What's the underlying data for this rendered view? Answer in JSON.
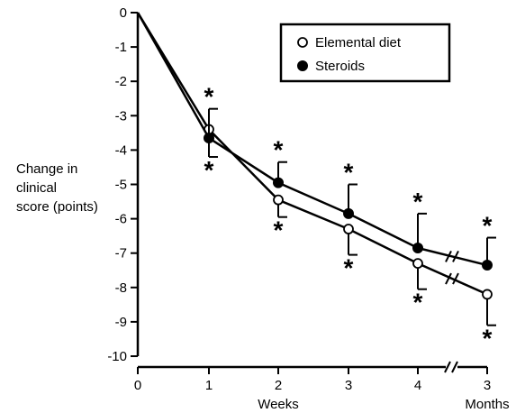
{
  "chart_data": {
    "type": "line",
    "ylabel": [
      "Change in",
      "clinical",
      "score (points)"
    ],
    "x_tick_labels": [
      "0",
      "1",
      "2",
      "3",
      "4",
      "3"
    ],
    "x_unit_labels": [
      "Weeks",
      "Months"
    ],
    "y_ticks": [
      0,
      -1,
      -2,
      -3,
      -4,
      -5,
      -6,
      -7,
      -8,
      -9,
      -10
    ],
    "y_tick_labels": [
      "0",
      "-1",
      "-2",
      "-3",
      "-4",
      "-5",
      "-6",
      "-7",
      "-8",
      "-9",
      "-10"
    ],
    "ylim": [
      -10,
      0
    ],
    "legend_position": "top-right",
    "axis_break": "between 4 weeks and 3 months",
    "significance_marker": "*",
    "series": [
      {
        "name": "Elemental diet",
        "marker": "open-circle",
        "x": [
          "0",
          "1 week",
          "2 weeks",
          "3 weeks",
          "4 weeks",
          "3 months"
        ],
        "y": [
          0,
          -3.4,
          -5.45,
          -6.3,
          -7.3,
          -8.2
        ],
        "error_direction": "down",
        "error": [
          0,
          0.8,
          0.5,
          0.75,
          0.75,
          0.9
        ],
        "significant": [
          false,
          true,
          true,
          true,
          true,
          true
        ]
      },
      {
        "name": "Steroids",
        "marker": "filled-circle",
        "x": [
          "0",
          "1 week",
          "2 weeks",
          "3 weeks",
          "4 weeks",
          "3 months"
        ],
        "y": [
          0,
          -3.65,
          -4.95,
          -5.85,
          -6.85,
          -7.35
        ],
        "error_direction": "up",
        "error": [
          0,
          0.85,
          0.6,
          0.85,
          1.0,
          0.8
        ],
        "significant": [
          false,
          true,
          true,
          true,
          true,
          true
        ]
      }
    ]
  }
}
